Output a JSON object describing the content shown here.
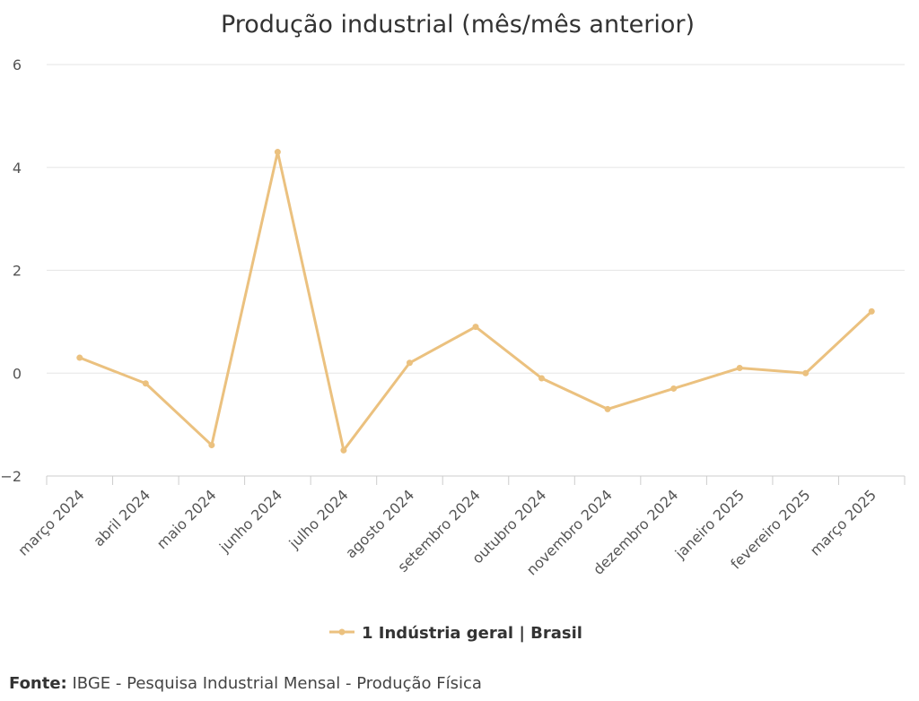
{
  "chart_data": {
    "type": "line",
    "title": "Produção industrial (mês/mês anterior)",
    "xlabel": "",
    "ylabel": "",
    "ylim": [
      -2,
      6
    ],
    "yticks": [
      "6",
      "4",
      "2",
      "0",
      "−2"
    ],
    "yticks_values": [
      6,
      4,
      2,
      0,
      -2
    ],
    "grid": true,
    "legend_position": "bottom",
    "categories": [
      "março 2024",
      "abril 2024",
      "maio 2024",
      "junho 2024",
      "julho 2024",
      "agosto 2024",
      "setembro 2024",
      "outubro 2024",
      "novembro 2024",
      "dezembro 2024",
      "janeiro 2025",
      "fevereiro 2025",
      "março 2025"
    ],
    "series": [
      {
        "name": "1 Indústria geral | Brasil",
        "color": "#ebc17f",
        "values": [
          0.3,
          -0.2,
          -1.4,
          4.3,
          -1.5,
          0.2,
          0.9,
          -0.1,
          -0.7,
          -0.3,
          0.1,
          0.0,
          1.2
        ]
      }
    ]
  },
  "source": {
    "label": "Fonte:",
    "text": "IBGE - Pesquisa Industrial Mensal - Produção Física"
  }
}
